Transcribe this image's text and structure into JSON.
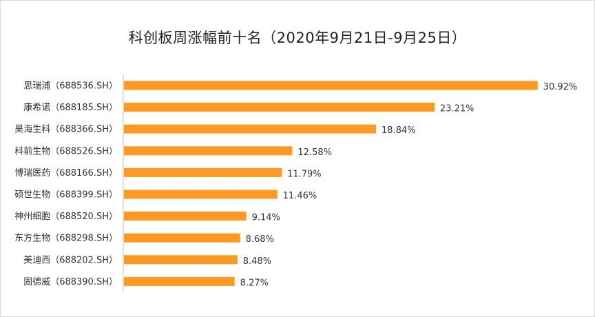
{
  "chart_data": {
    "type": "bar",
    "orientation": "horizontal",
    "title": "科创板周涨幅前十名（2020年9月21日-9月25日）",
    "categories": [
      "思瑞浦（688536.SH）",
      "康希诺（688185.SH）",
      "昊海生科（688366.SH）",
      "科前生物（688526.SH）",
      "博瑞医药（688166.SH）",
      "硕世生物（688399.SH）",
      "神州细胞（688520.SH）",
      "东方生物（688298.SH）",
      "美迪西（688202.SH）",
      "固德威（688390.SH）"
    ],
    "values": [
      30.92,
      23.21,
      18.84,
      12.58,
      11.79,
      11.46,
      9.14,
      8.68,
      8.48,
      8.27
    ],
    "value_labels": [
      "30.92%",
      "23.21%",
      "18.84%",
      "12.58%",
      "11.79%",
      "11.46%",
      "9.14%",
      "8.68%",
      "8.48%",
      "8.27%"
    ],
    "xlim": [
      0,
      35
    ],
    "grid": false,
    "bar_color": "#FF9922",
    "axis_color": "#BFBFBF"
  }
}
